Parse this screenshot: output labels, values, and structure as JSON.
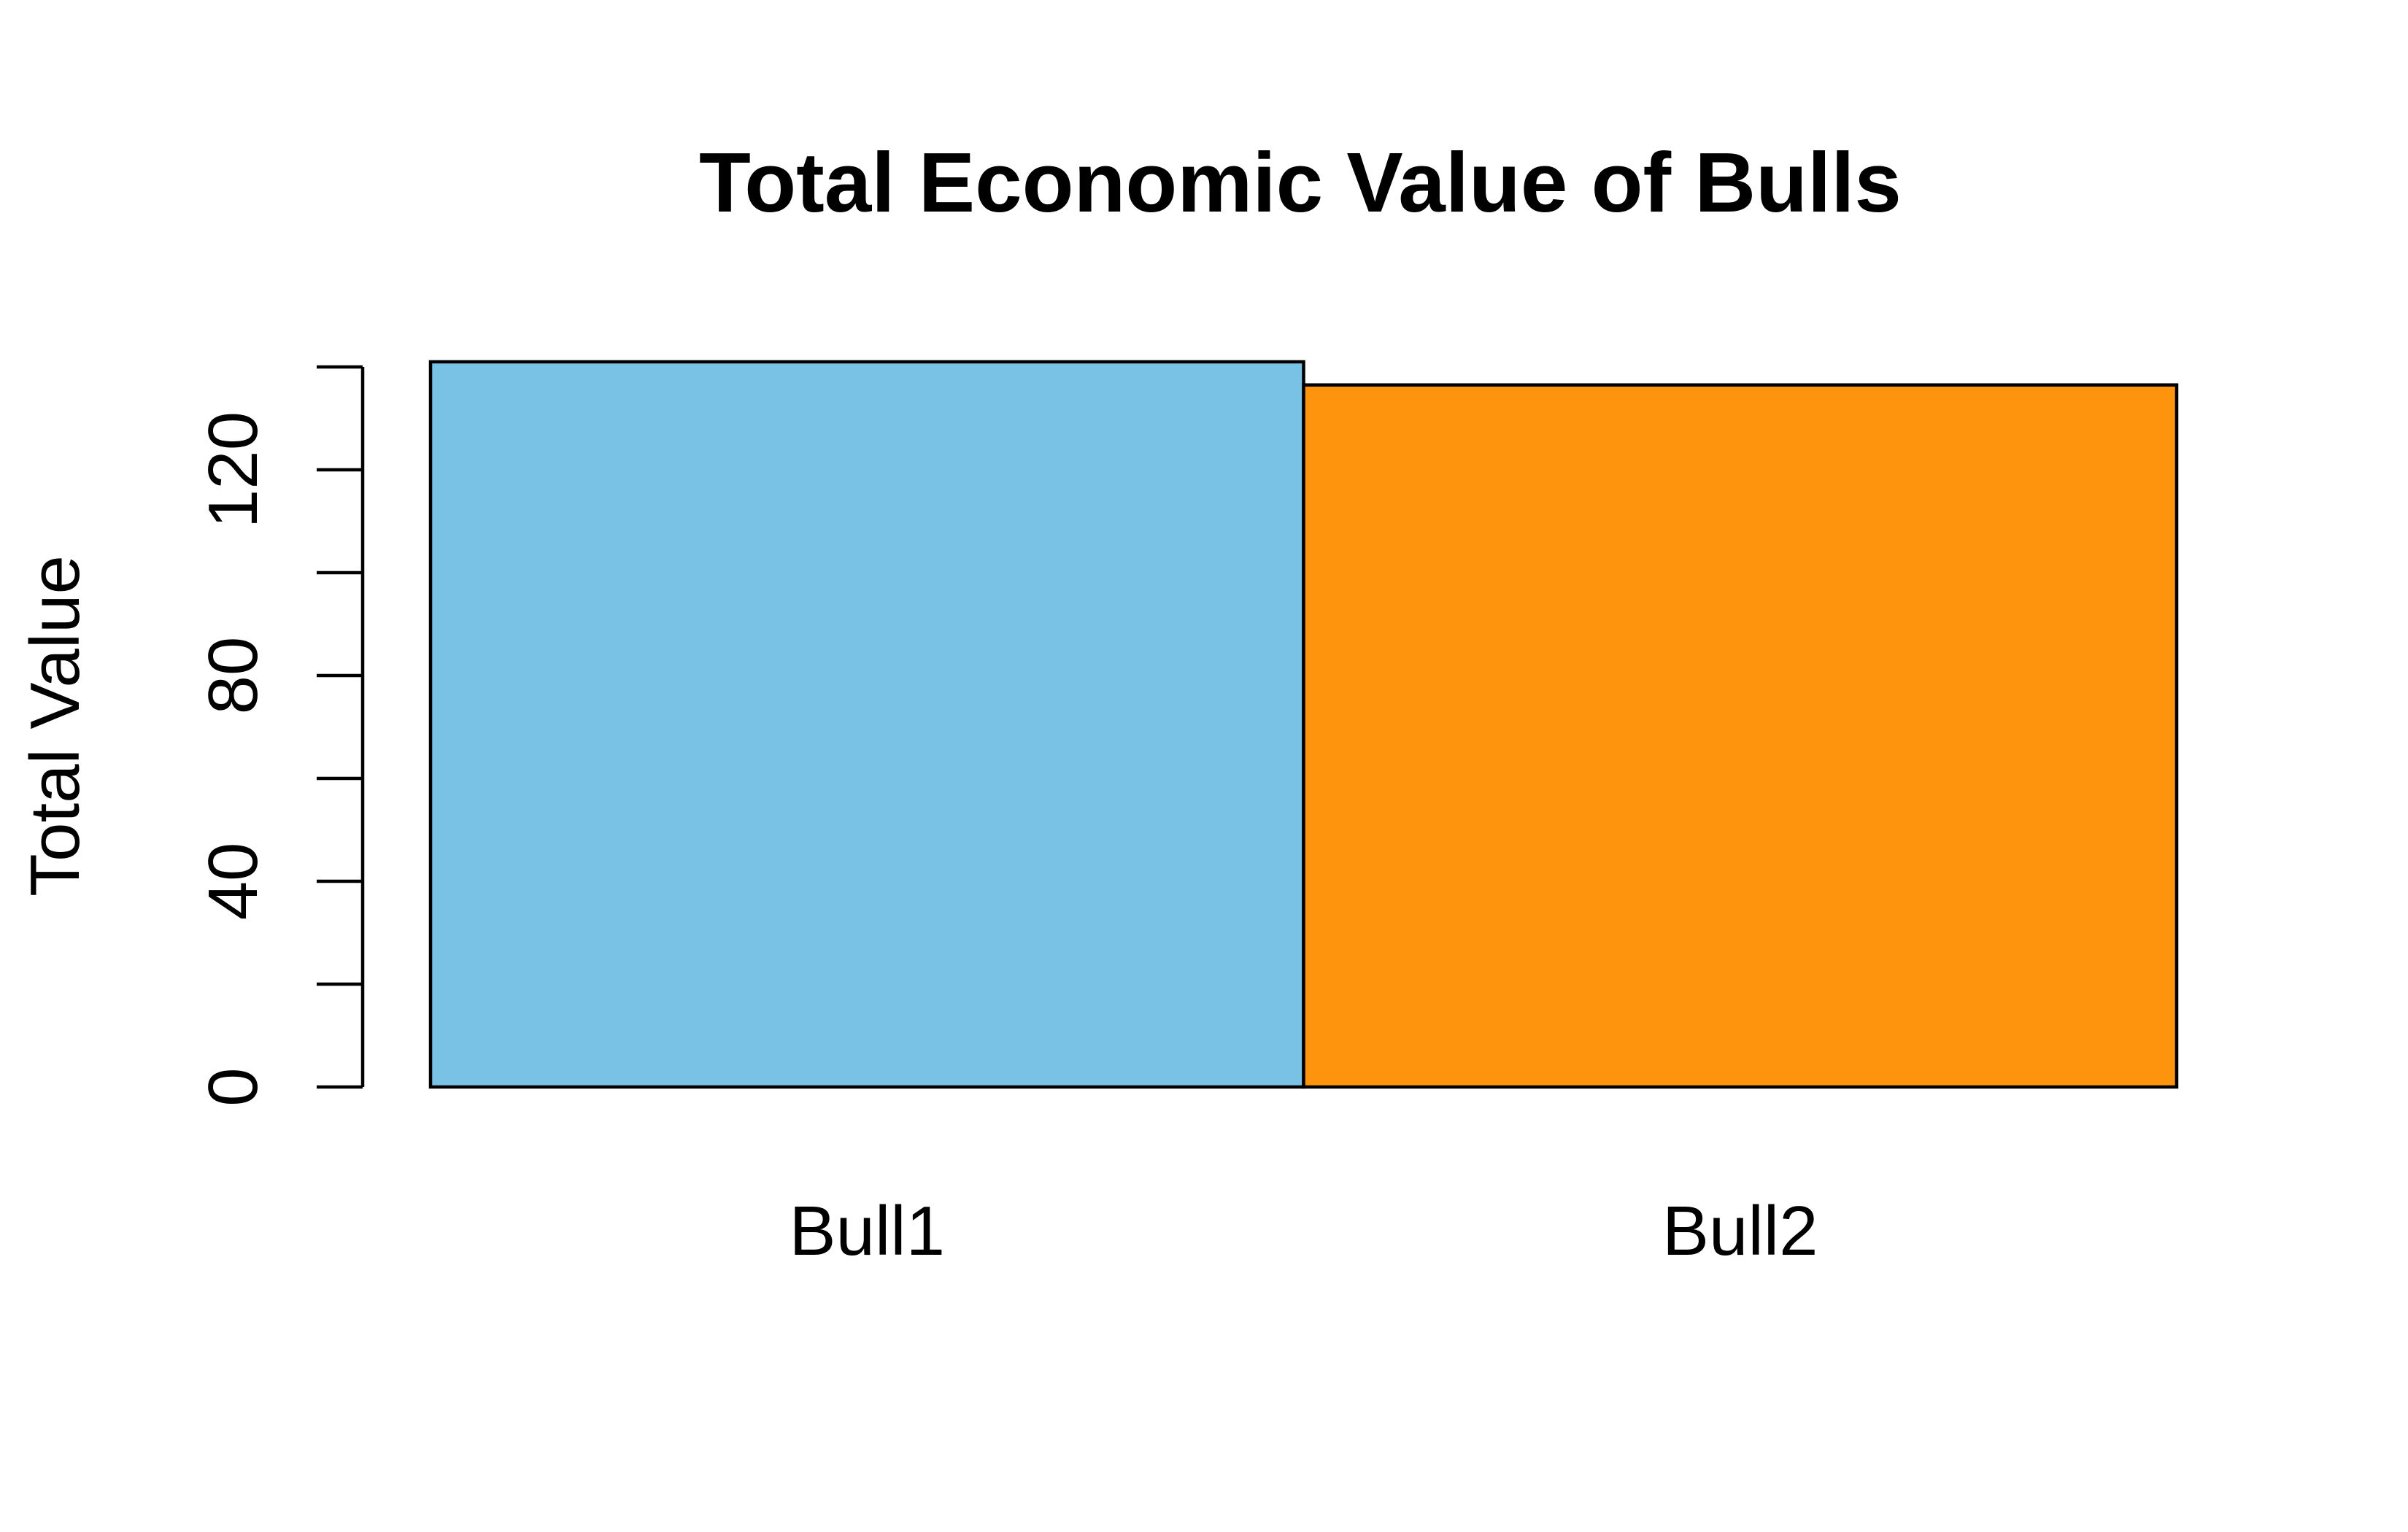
{
  "chart_data": {
    "type": "bar",
    "title": "Total Economic Value of Bulls",
    "xlabel": "",
    "ylabel": "Total Value",
    "categories": [
      "Bull1",
      "Bull2"
    ],
    "values": [
      141,
      136.5
    ],
    "colors": [
      "#79C1E5",
      "#FE940E"
    ],
    "ylim": [
      0,
      140
    ],
    "yticks": [
      0,
      20,
      40,
      60,
      80,
      100,
      120,
      140
    ],
    "ytick_labels": [
      "0",
      "",
      "40",
      "",
      "80",
      "",
      "120",
      ""
    ],
    "grid": false,
    "legend": "none"
  }
}
